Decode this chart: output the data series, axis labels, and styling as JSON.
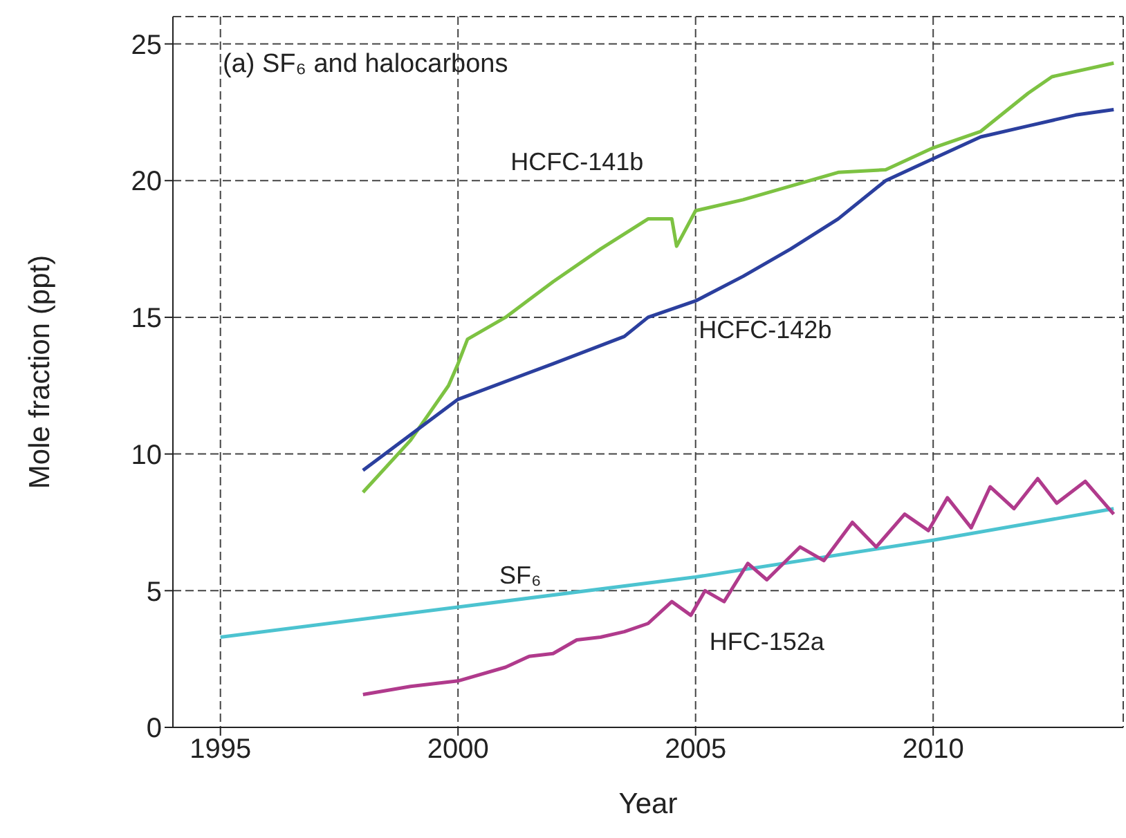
{
  "chart_data": {
    "type": "line",
    "title": "(a) SF₆ and halocarbons",
    "xlabel": "Year",
    "ylabel": "Mole fraction (ppt)",
    "xlim": [
      1994,
      2014
    ],
    "xticks": [
      1995,
      2000,
      2005,
      2010
    ],
    "ylim": [
      0,
      26
    ],
    "yticks": [
      0,
      5,
      10,
      15,
      20,
      25
    ],
    "grid": true,
    "legend": false,
    "marker": "none",
    "line_style": "solid",
    "series": [
      {
        "name": "HCFC-141b",
        "color": "#7dc242",
        "x": [
          1998,
          1999,
          1999.8,
          2000,
          2000.2,
          2001,
          2002,
          2003,
          2004,
          2004.5,
          2004.6,
          2005,
          2006,
          2007,
          2008,
          2009,
          2010,
          2011,
          2012,
          2012.5,
          2013.8
        ],
        "values": [
          8.6,
          10.5,
          12.5,
          13.3,
          14.2,
          15.0,
          16.3,
          17.5,
          18.6,
          18.6,
          17.6,
          18.9,
          19.3,
          19.8,
          20.3,
          20.4,
          21.2,
          21.8,
          23.2,
          23.8,
          24.3
        ]
      },
      {
        "name": "HCFC-142b",
        "color": "#2b3f9e",
        "x": [
          1998,
          2000,
          2002,
          2003.5,
          2004,
          2005,
          2006,
          2007,
          2008,
          2009,
          2010,
          2011,
          2012,
          2013,
          2013.8
        ],
        "values": [
          9.4,
          12.0,
          13.3,
          14.3,
          15.0,
          15.6,
          16.5,
          17.5,
          18.6,
          20.0,
          20.8,
          21.6,
          22.0,
          22.4,
          22.6
        ]
      },
      {
        "name": "SF₆",
        "color": "#4cc3d0",
        "x": [
          1995,
          2000,
          2005,
          2010,
          2013.8
        ],
        "values": [
          3.3,
          4.4,
          5.5,
          6.85,
          8.0
        ]
      },
      {
        "name": "HFC-152a",
        "color": "#b03a8c",
        "x": [
          1998,
          1999,
          2000,
          2001,
          2001.5,
          2002,
          2002.5,
          2003,
          2003.5,
          2004,
          2004.5,
          2004.9,
          2005.2,
          2005.6,
          2006.1,
          2006.5,
          2007.2,
          2007.7,
          2008.3,
          2008.8,
          2009.4,
          2009.9,
          2010.3,
          2010.8,
          2011.2,
          2011.7,
          2012.2,
          2012.6,
          2013.2,
          2013.8
        ],
        "values": [
          1.2,
          1.5,
          1.7,
          2.2,
          2.6,
          2.7,
          3.2,
          3.3,
          3.5,
          3.8,
          4.6,
          4.1,
          5.0,
          4.6,
          6.0,
          5.4,
          6.6,
          6.1,
          7.5,
          6.6,
          7.8,
          7.2,
          8.4,
          7.3,
          8.8,
          8.0,
          9.1,
          8.2,
          9.0,
          7.8
        ]
      }
    ]
  }
}
